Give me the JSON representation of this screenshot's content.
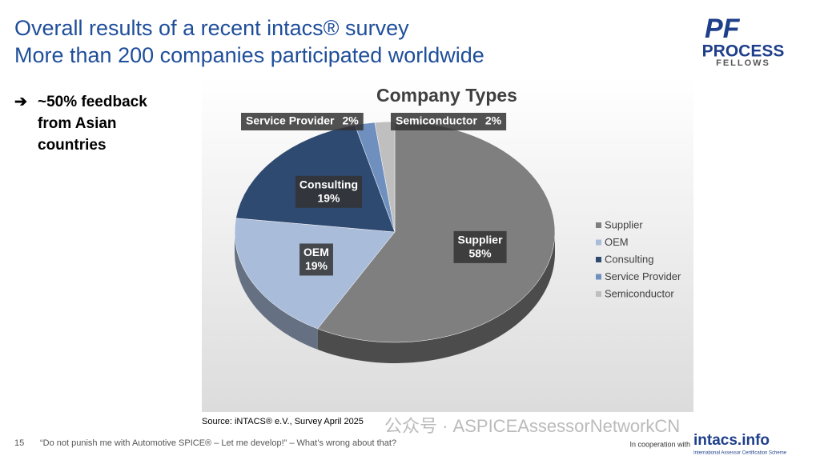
{
  "slide": {
    "title_lines": [
      "Overall results of a recent intacs® survey",
      "More than 200 companies participated worldwide"
    ],
    "bullet_lines": [
      "~50% feedback",
      "from Asian",
      "countries"
    ],
    "logo": {
      "mark": "PF",
      "line1": "PROCESS",
      "line2": "FELLOWS"
    },
    "source": "Source: iNTACS® e.V., Survey April 2025",
    "watermark": "公众号 · ASPICEAssessorNetworkCN",
    "page_number": "15",
    "footer_quote": "“Do not punish me with Automotive SPICE® – Let me develop!” – What’s wrong about that?",
    "cooperation": "In cooperation with",
    "partner": "intacs.info",
    "partner_tagline": "International Assessor Certification Scheme"
  },
  "chart_data": {
    "type": "pie",
    "title": "Company Types",
    "categories": [
      "Supplier",
      "OEM",
      "Consulting",
      "Service Provider",
      "Semiconductor"
    ],
    "values": [
      58,
      19,
      19,
      2,
      2
    ],
    "value_labels": [
      "58%",
      "19%",
      "19%",
      "2%",
      "2%"
    ],
    "colors": [
      "#7f7f7f",
      "#a9bcd9",
      "#2e4a70",
      "#6f8fbf",
      "#bfbfbf"
    ],
    "legend": "right"
  }
}
